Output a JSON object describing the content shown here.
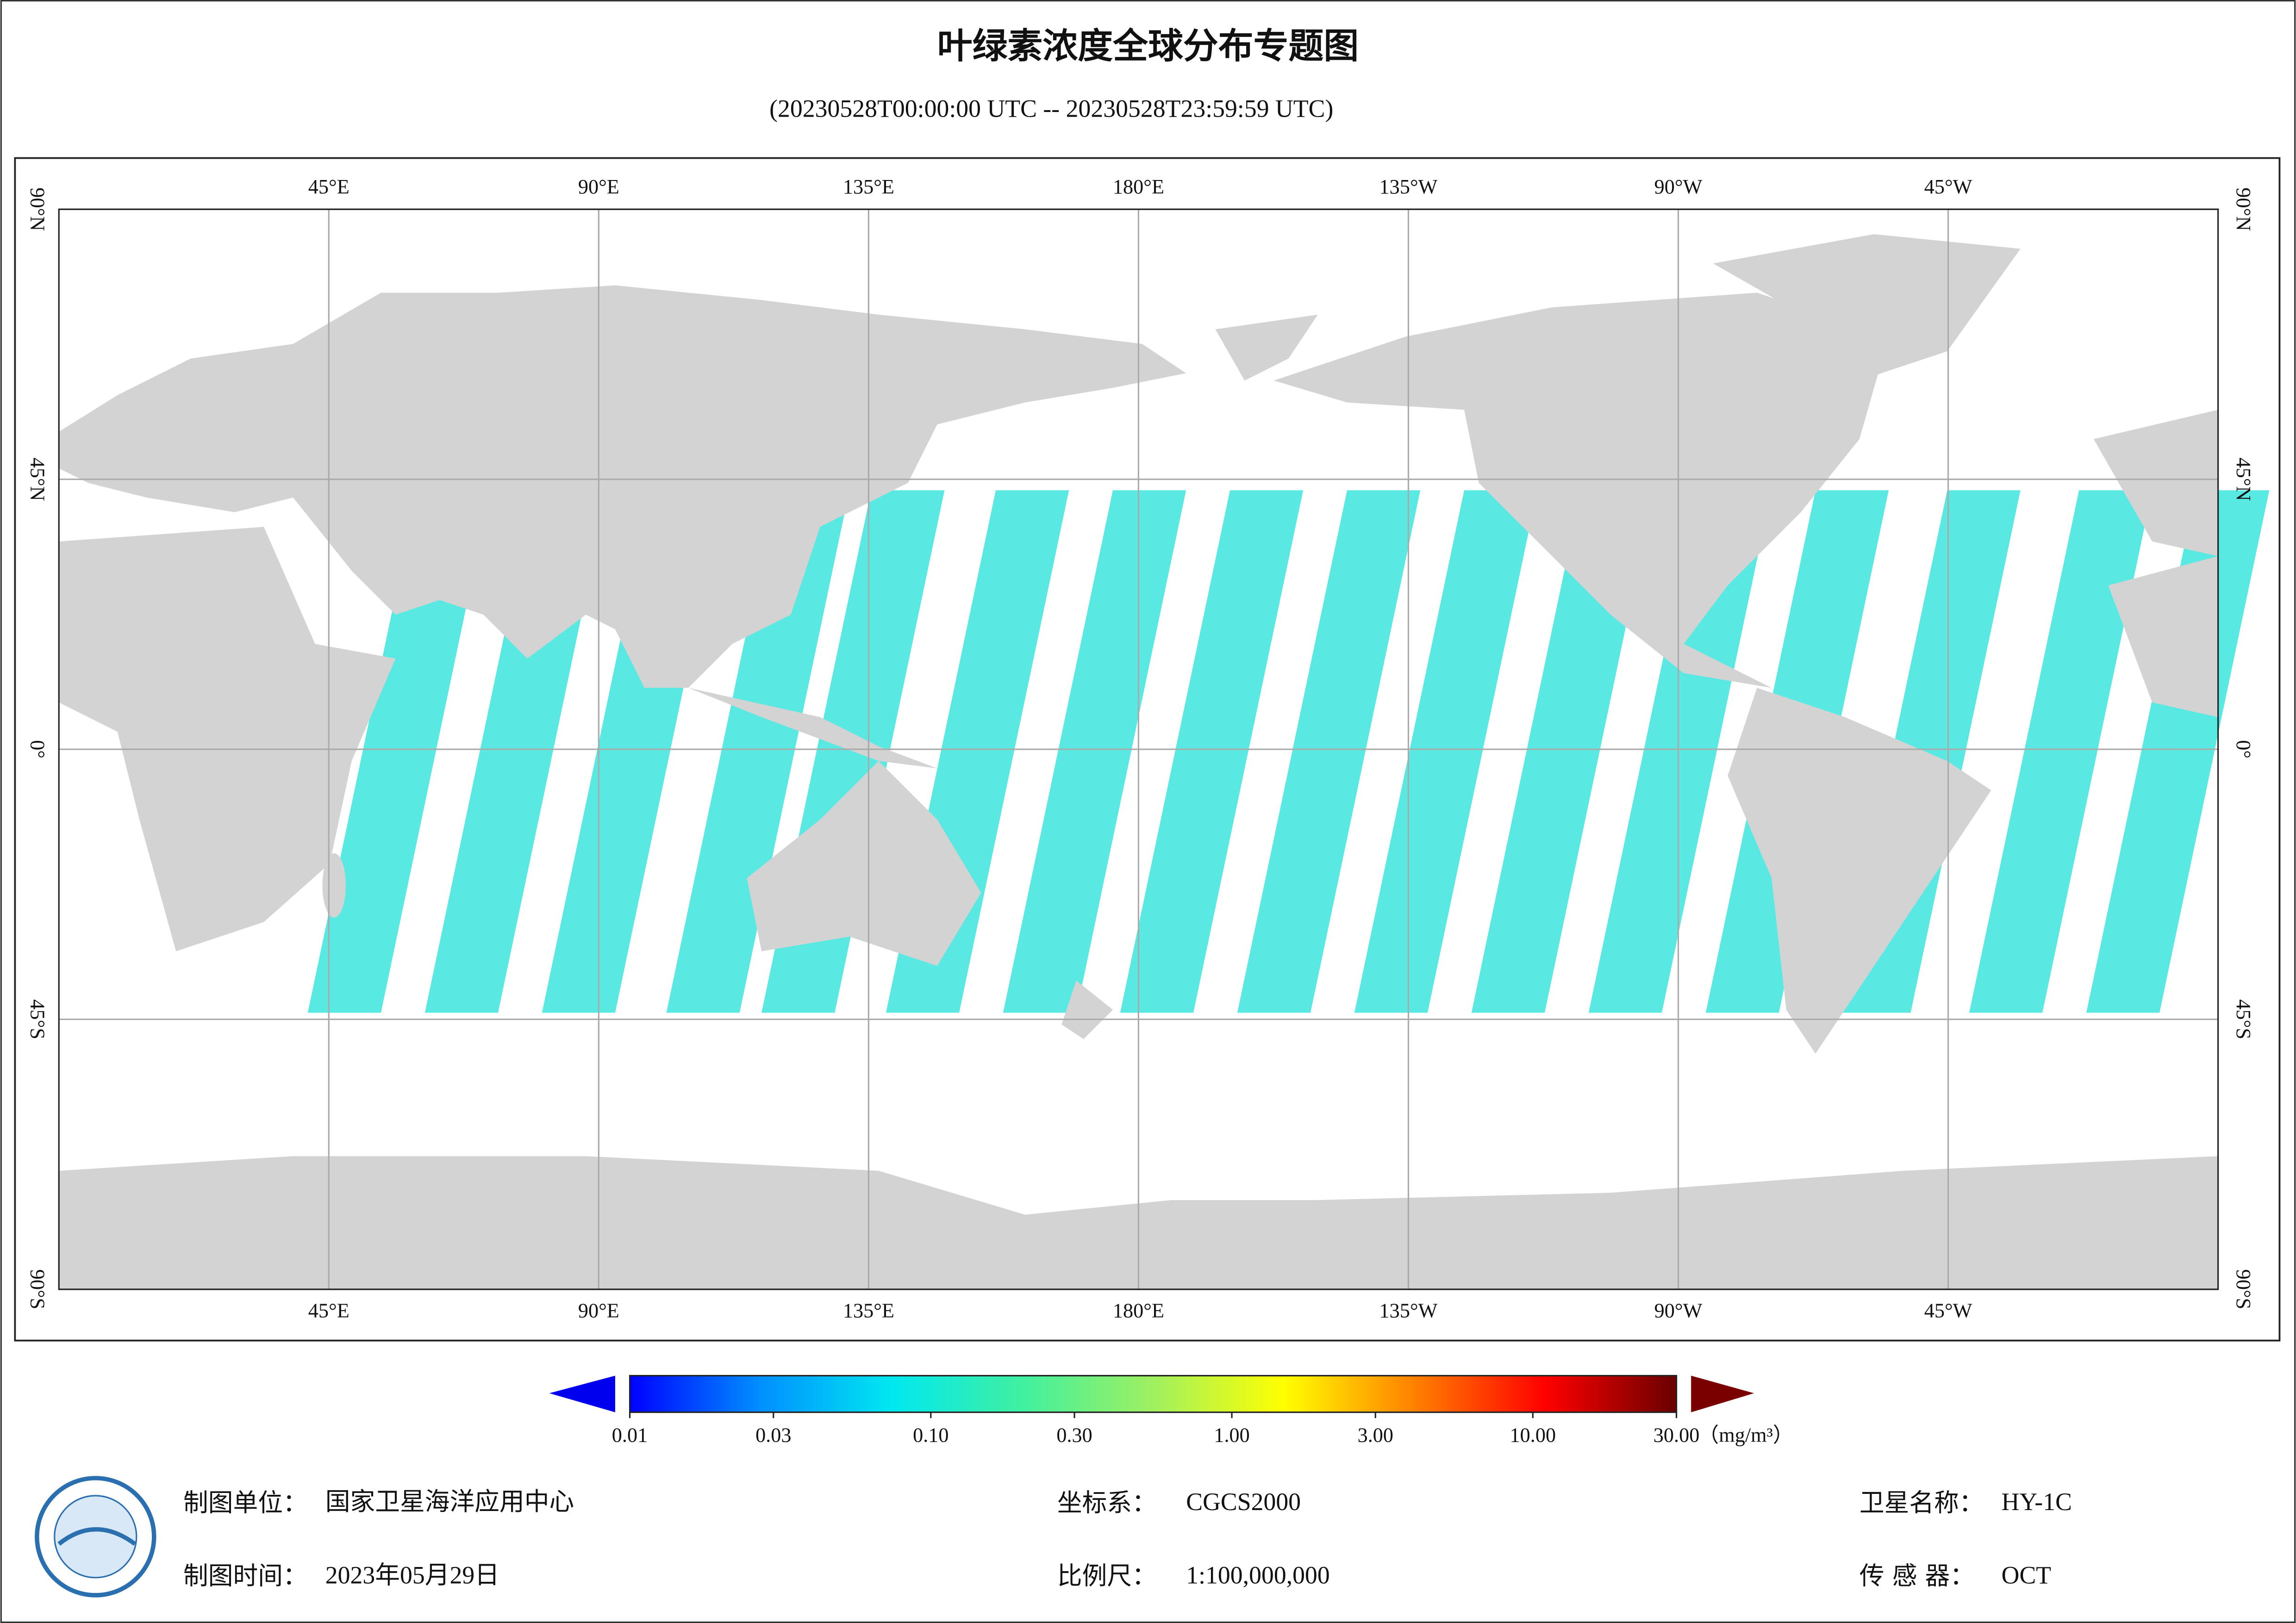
{
  "header": {
    "title": "叶绿素浓度全球分布专题图",
    "subtitle": "(20230528T00:00:00 UTC -- 20230528T23:59:59 UTC)"
  },
  "map": {
    "lon_labels": [
      {
        "value": 45,
        "label": "45°E"
      },
      {
        "value": 90,
        "label": "90°E"
      },
      {
        "value": 135,
        "label": "135°E"
      },
      {
        "value": 180,
        "label": "180°E"
      },
      {
        "value": 225,
        "label": "135°W"
      },
      {
        "value": 270,
        "label": "90°W"
      },
      {
        "value": 315,
        "label": "45°W"
      }
    ],
    "lat_labels": [
      {
        "value": 90,
        "label": "90°N"
      },
      {
        "value": 45,
        "label": "45°N"
      },
      {
        "value": 0,
        "label": "0°"
      },
      {
        "value": -45,
        "label": "45°S"
      },
      {
        "value": -90,
        "label": "90°S"
      }
    ],
    "grid": true
  },
  "colorbar": {
    "scale": "log",
    "lim": [
      0.01,
      30
    ],
    "ticks": [
      0.01,
      0.03,
      {
        "value": 0.1,
        "label": "0.10"
      },
      {
        "value": 0.3,
        "label": "0.30"
      },
      {
        "value": 1,
        "label": "1.00"
      },
      {
        "value": 3,
        "label": "3.00"
      },
      {
        "value": 10,
        "label": "10.00"
      },
      {
        "value": 30,
        "label": "30.00"
      }
    ],
    "unit": "（mg/m³）",
    "colors": [
      "#0000ff",
      "#0090ff",
      "#00e8f0",
      "#40f0a0",
      "#a0f060",
      "#ffff00",
      "#ff8000",
      "#ff0000",
      "#6a0000"
    ]
  },
  "footer": {
    "unit": {
      "label": "制图单位：",
      "value": "国家卫星海洋应用中心"
    },
    "time": {
      "label": "制图时间：",
      "value": "2023年05月29日"
    },
    "crs": {
      "label": "坐标系：",
      "value": "CGCS2000"
    },
    "scale": {
      "label": "比例尺：",
      "value": "1:100,000,000"
    },
    "satellite": {
      "label": "卫星名称：",
      "value": "HY-1C"
    },
    "sensor": {
      "label": "传 感 器：",
      "value": "OCT"
    }
  }
}
